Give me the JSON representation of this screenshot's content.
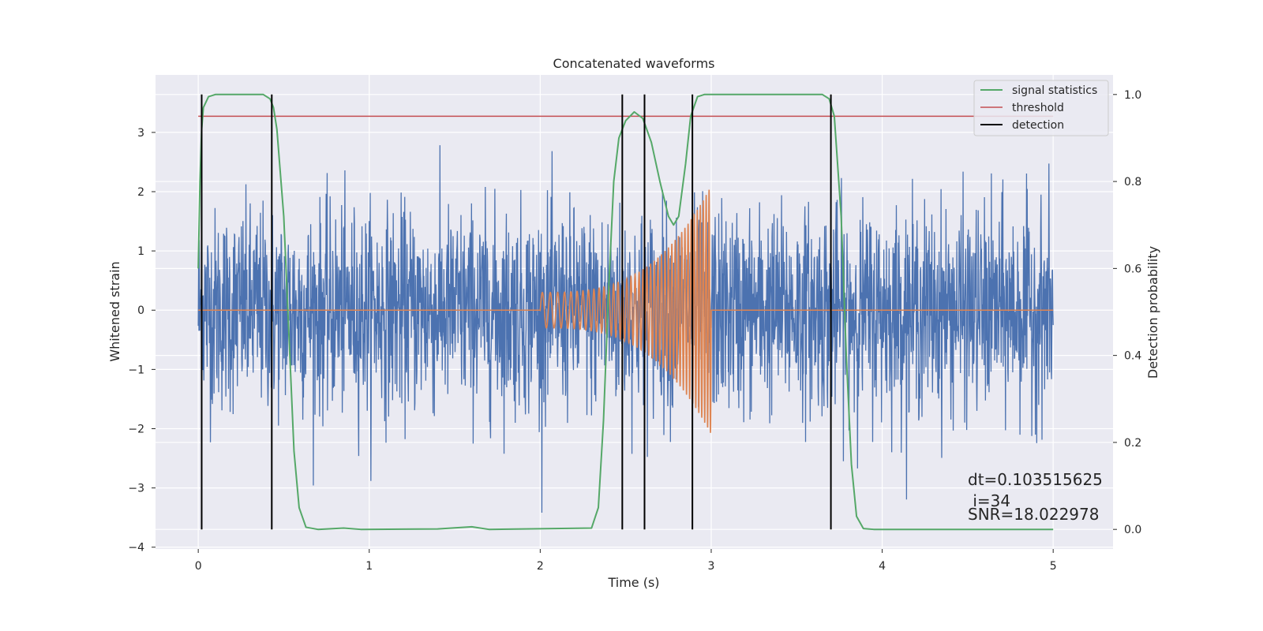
{
  "chart_data": {
    "type": "line",
    "title": "Concatenated waveforms",
    "xlabel": "Time (s)",
    "ylabel": "Whitened strain",
    "ylabel_right": "Detection probability",
    "xlim": [
      -0.25,
      5.35
    ],
    "ylim": [
      -4.03,
      3.97
    ],
    "ylim_right": [
      -0.045,
      1.045
    ],
    "x_ticks": [
      0,
      1,
      2,
      3,
      4,
      5
    ],
    "x_tick_labels": [
      "0",
      "1",
      "2",
      "3",
      "4",
      "5"
    ],
    "y_ticks": [
      -4,
      -3,
      -2,
      -1,
      0,
      1,
      2,
      3
    ],
    "y_tick_labels": [
      "−4",
      "−3",
      "−2",
      "−1",
      "0",
      "1",
      "2",
      "3"
    ],
    "y_right_ticks": [
      0.0,
      0.2,
      0.4,
      0.6,
      0.8,
      1.0
    ],
    "y_right_tick_labels": [
      "0.0",
      "0.2",
      "0.4",
      "0.6",
      "0.8",
      "1.0"
    ],
    "grid": true,
    "legend_position": "top-right",
    "legend": [
      {
        "label": "signal statistics",
        "color": "#55a868"
      },
      {
        "label": "threshold",
        "color": "#c44e52"
      },
      {
        "label": "detection",
        "color": "#000000"
      }
    ],
    "strain_noise": {
      "color": "#4c72b0",
      "t_start": 0,
      "t_end": 5,
      "typical_amplitude": 1.7,
      "peak_amplitude": 3.6
    },
    "chirp": {
      "color": "#dd8452",
      "t_start": 2.0,
      "t_end": 3.0,
      "start_amplitude": 0.3,
      "end_amplitude": 2.1,
      "start_frequency_hz": 20,
      "end_frequency_hz": 60
    },
    "threshold": {
      "value": 0.95,
      "x_start": 0,
      "x_end": 5
    },
    "signal_statistics": [
      [
        0.0,
        0.6
      ],
      [
        0.01,
        0.8
      ],
      [
        0.02,
        0.92
      ],
      [
        0.03,
        0.97
      ],
      [
        0.06,
        0.995
      ],
      [
        0.1,
        1.0
      ],
      [
        0.38,
        1.0
      ],
      [
        0.42,
        0.99
      ],
      [
        0.44,
        0.97
      ],
      [
        0.46,
        0.92
      ],
      [
        0.5,
        0.72
      ],
      [
        0.53,
        0.45
      ],
      [
        0.56,
        0.18
      ],
      [
        0.59,
        0.05
      ],
      [
        0.63,
        0.005
      ],
      [
        0.7,
        0.0
      ],
      [
        0.85,
        0.003
      ],
      [
        0.95,
        0.0
      ],
      [
        1.4,
        0.001
      ],
      [
        1.6,
        0.006
      ],
      [
        1.7,
        0.0
      ],
      [
        2.3,
        0.003
      ],
      [
        2.34,
        0.05
      ],
      [
        2.37,
        0.25
      ],
      [
        2.4,
        0.55
      ],
      [
        2.43,
        0.8
      ],
      [
        2.46,
        0.9
      ],
      [
        2.5,
        0.94
      ],
      [
        2.55,
        0.96
      ],
      [
        2.6,
        0.945
      ],
      [
        2.65,
        0.89
      ],
      [
        2.7,
        0.8
      ],
      [
        2.75,
        0.72
      ],
      [
        2.78,
        0.7
      ],
      [
        2.81,
        0.72
      ],
      [
        2.85,
        0.84
      ],
      [
        2.88,
        0.95
      ],
      [
        2.92,
        0.995
      ],
      [
        2.96,
        1.0
      ],
      [
        3.65,
        1.0
      ],
      [
        3.69,
        0.99
      ],
      [
        3.72,
        0.95
      ],
      [
        3.76,
        0.72
      ],
      [
        3.79,
        0.4
      ],
      [
        3.82,
        0.15
      ],
      [
        3.85,
        0.03
      ],
      [
        3.89,
        0.002
      ],
      [
        3.95,
        0.0
      ],
      [
        5.0,
        0.0
      ]
    ],
    "detections": [
      0.02,
      0.43,
      2.48,
      2.61,
      2.89,
      3.7
    ],
    "annotations": [
      "dt=0.103515625",
      " i=34",
      "SNR=18.022978"
    ]
  }
}
